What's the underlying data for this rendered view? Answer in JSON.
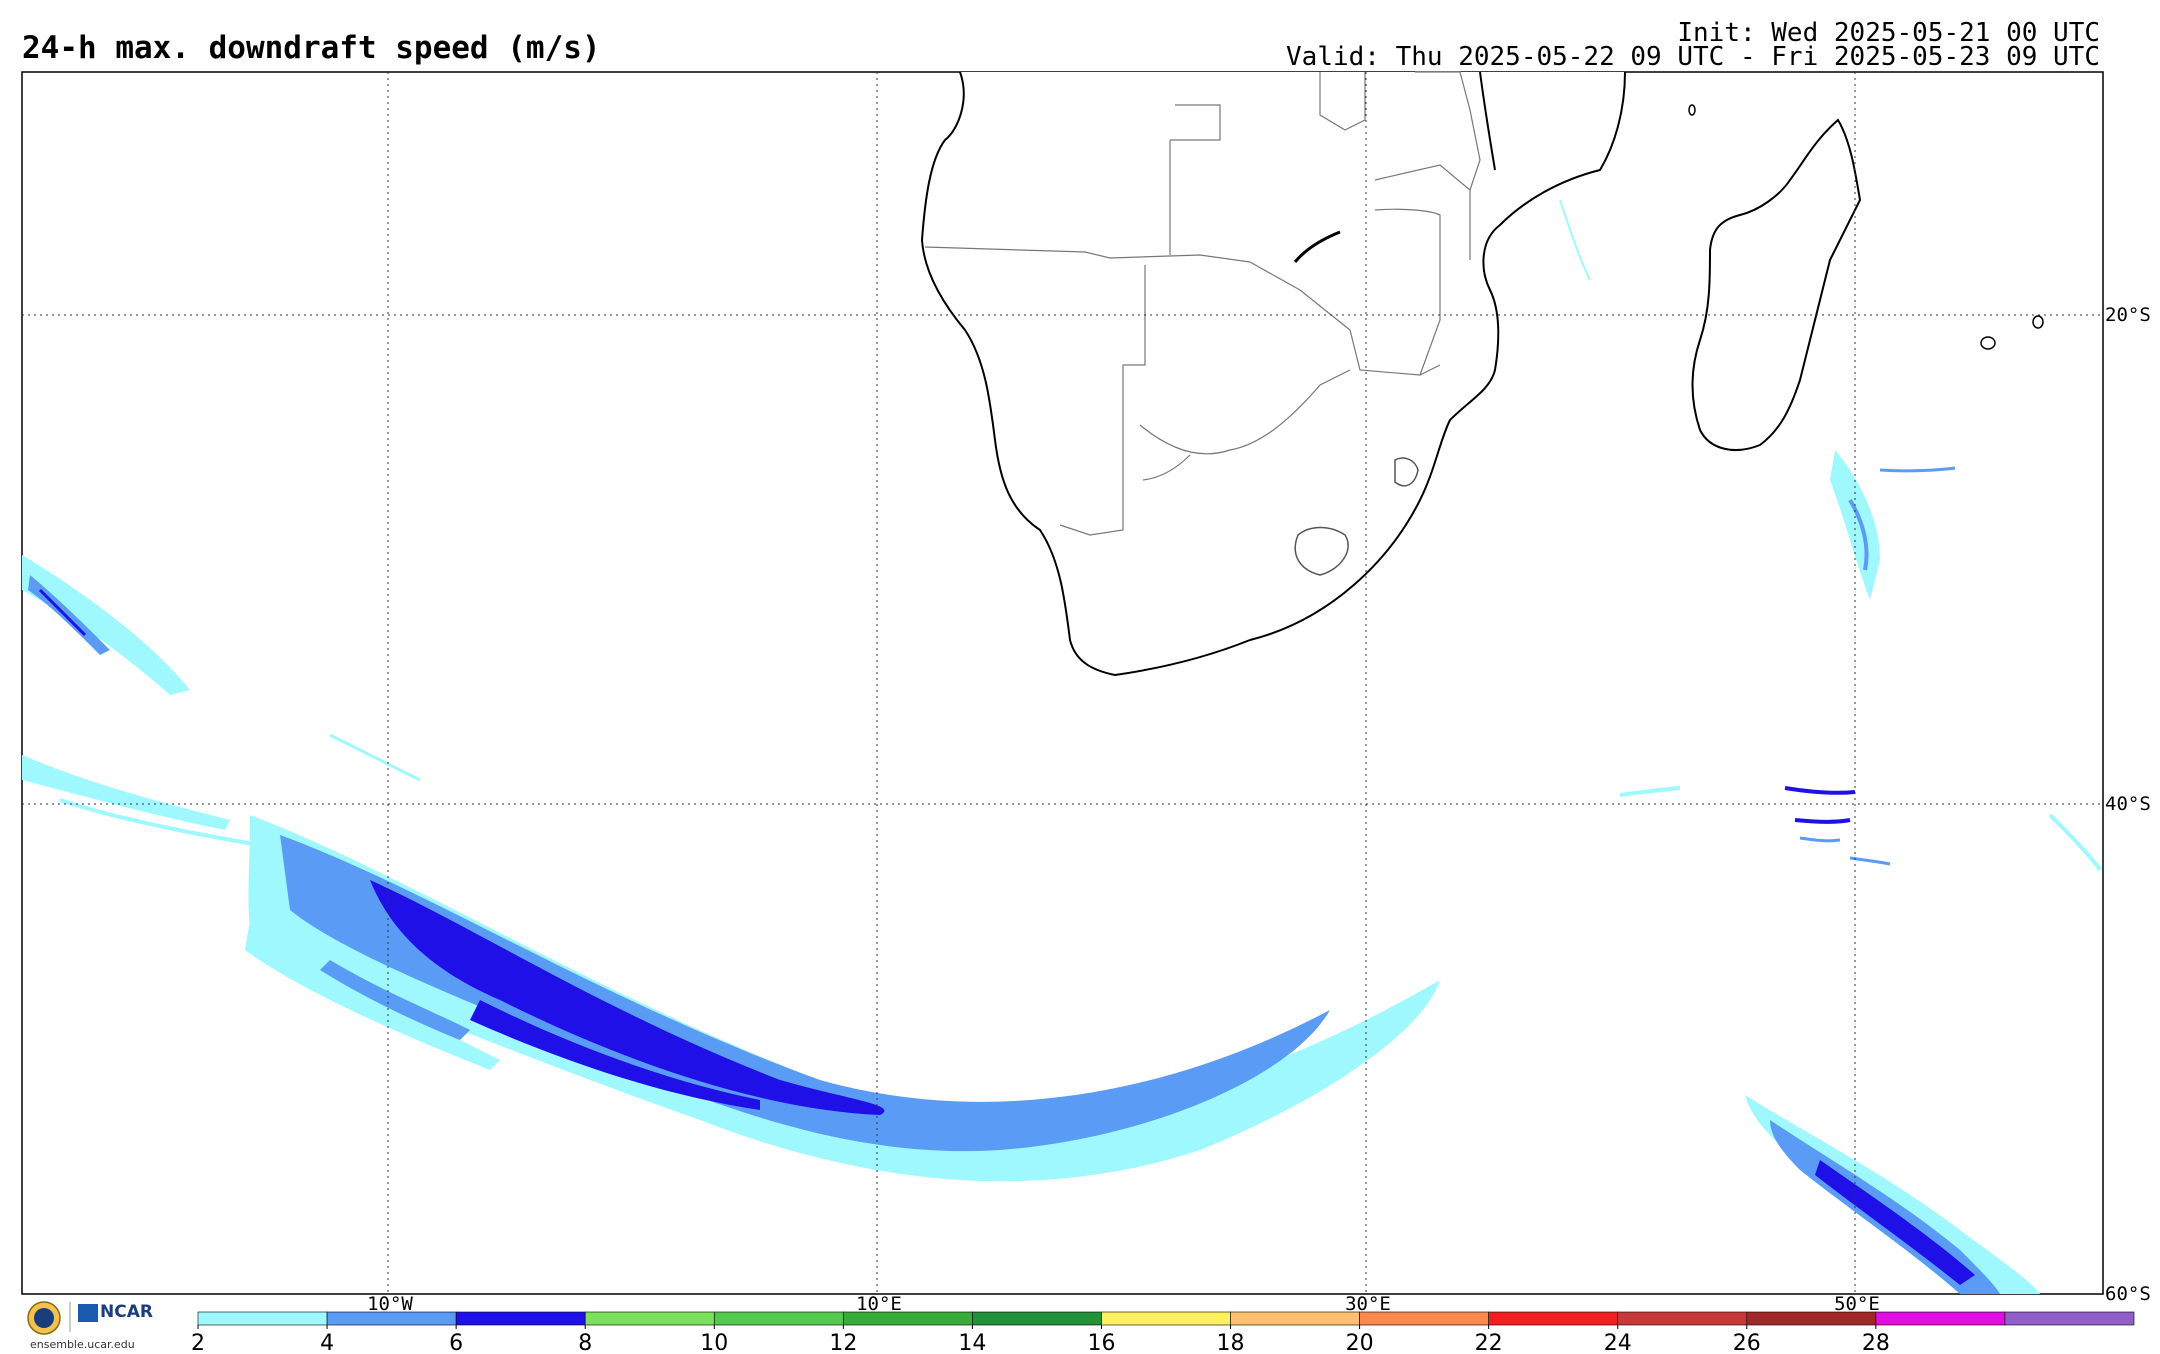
{
  "header": {
    "title": "24-h max. downdraft speed (m/s)",
    "init": "Init: Wed 2025-05-21 00 UTC",
    "valid": "Valid: Thu 2025-05-22 09 UTC - Fri 2025-05-23 09 UTC"
  },
  "map": {
    "lon_labels": [
      "10°W",
      "10°E",
      "30°E",
      "50°E"
    ],
    "lat_labels": [
      "20°S",
      "40°S",
      "60°S"
    ],
    "land_color": "#ffffff",
    "coast_color": "#000000",
    "border_color": "#666666",
    "grid": true
  },
  "colorbar": {
    "ticks": [
      "2",
      "4",
      "6",
      "8",
      "10",
      "12",
      "14",
      "16",
      "18",
      "20",
      "22",
      "24",
      "26",
      "28"
    ],
    "colors": [
      "#a0f8ff",
      "#5a9cf5",
      "#2010e8",
      "#7be05a",
      "#55c850",
      "#38ab3a",
      "#23903a",
      "#fff060",
      "#ffc070",
      "#ff8850",
      "#f02020",
      "#c83838",
      "#a02828",
      "#e010e0",
      "#9060c8"
    ],
    "boundaries": [
      2,
      3,
      4,
      6,
      8,
      10,
      12,
      14,
      16,
      18,
      20,
      22,
      24,
      26,
      28,
      30
    ]
  },
  "branding": {
    "org": "NCAR",
    "url": "ensemble.ucar.edu"
  }
}
